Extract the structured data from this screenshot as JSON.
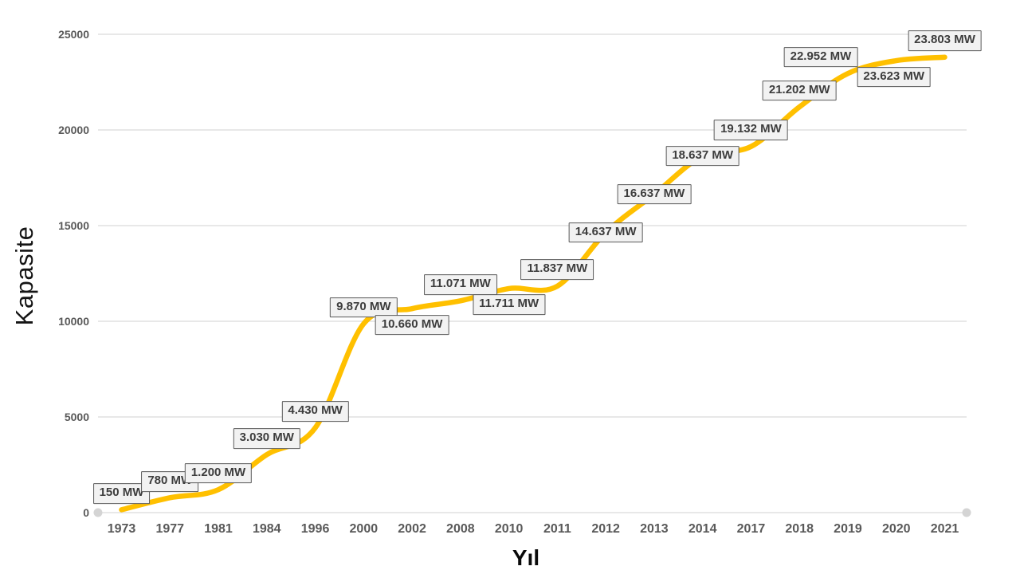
{
  "chart_data": {
    "type": "line",
    "title": "",
    "xlabel": "Yıl",
    "ylabel": "Kapasite",
    "categories": [
      "1973",
      "1977",
      "1981",
      "1984",
      "1996",
      "2000",
      "2002",
      "2008",
      "2010",
      "2011",
      "2012",
      "2013",
      "2014",
      "2017",
      "2018",
      "2019",
      "2020",
      "2021"
    ],
    "values": [
      150,
      780,
      1200,
      3030,
      4430,
      9870,
      10660,
      11071,
      11711,
      11837,
      14637,
      16637,
      18637,
      19132,
      21202,
      22952,
      23623,
      23803
    ],
    "point_labels": [
      "150 MW",
      "780 MW",
      "1.200 MW",
      "3.030 MW",
      "4.430 MW",
      "9.870 MW",
      "10.660 MW",
      "11.071 MW",
      "11.711 MW",
      "11.837 MW",
      "14.637 MW",
      "16.637 MW",
      "18.637 MW",
      "19.132 MW",
      "21.202 MW",
      "22.952 MW",
      "23.623 MW",
      "23.803 MW"
    ],
    "y_ticks": [
      0,
      5000,
      10000,
      15000,
      20000,
      25000
    ],
    "ylim": [
      0,
      25000
    ],
    "grid": true,
    "legend": "none",
    "smooth": true,
    "line_color": "#FFC000",
    "grid_color": "#D9D9D9",
    "axis_marker_color": "#D4D4D4",
    "tick_text_color": "#595959",
    "label_sides": [
      "above",
      "above",
      "above",
      "above",
      "above",
      "above",
      "below",
      "above",
      "below",
      "above",
      "center",
      "center",
      "center",
      "above",
      "above",
      "above",
      "below",
      "above"
    ],
    "label_dx": [
      0,
      0,
      0,
      0,
      0,
      0,
      0,
      0,
      0,
      0,
      0,
      0,
      0,
      0,
      0,
      -34,
      -3,
      0
    ]
  }
}
